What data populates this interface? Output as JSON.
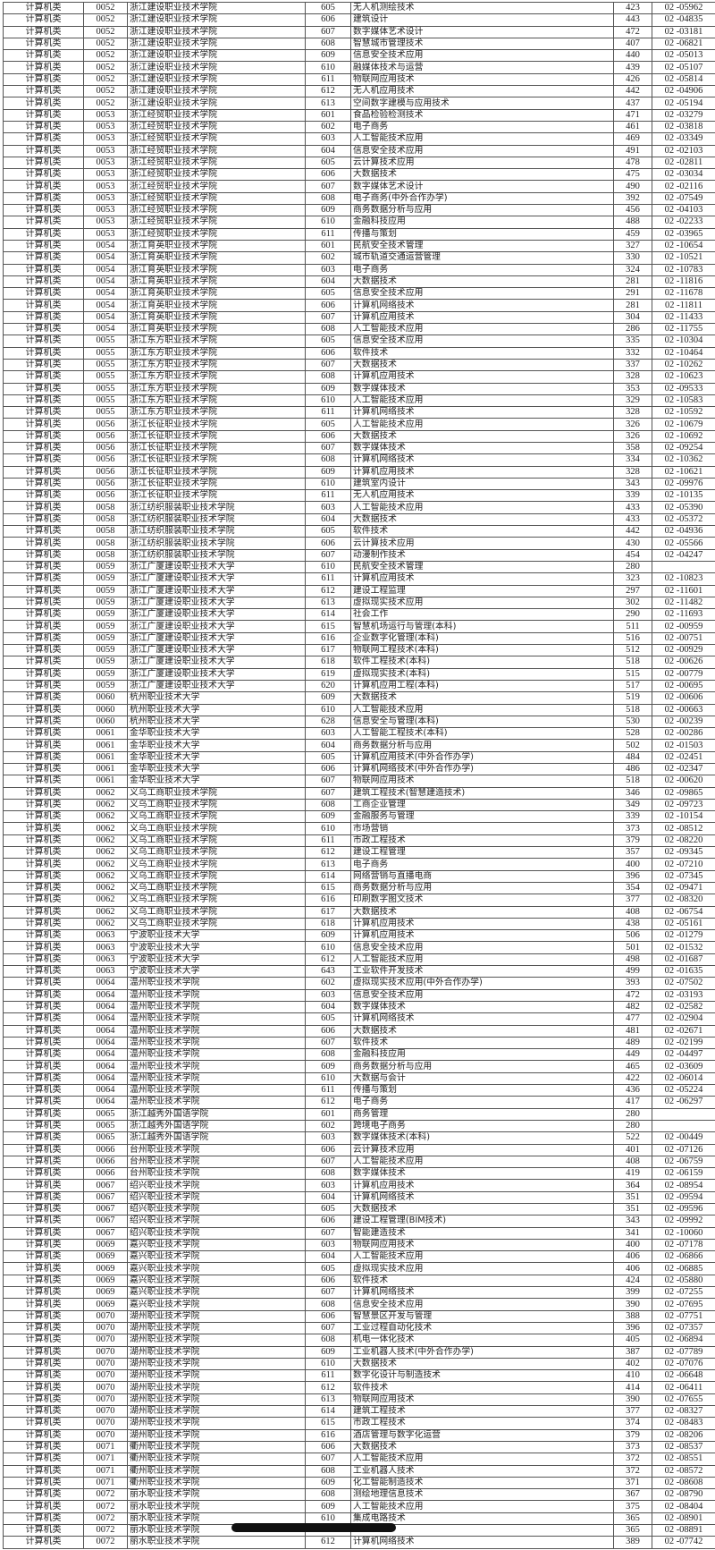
{
  "table": {
    "rows": [
      [
        "计算机类",
        "0052",
        "浙江建设职业技术学院",
        "605",
        "无人机测绘技术",
        "423",
        "02 -05962"
      ],
      [
        "计算机类",
        "0052",
        "浙江建设职业技术学院",
        "606",
        "建筑设计",
        "443",
        "02 -04835"
      ],
      [
        "计算机类",
        "0052",
        "浙江建设职业技术学院",
        "607",
        "数字媒体艺术设计",
        "472",
        "02 -03181"
      ],
      [
        "计算机类",
        "0052",
        "浙江建设职业技术学院",
        "608",
        "智慧城市管理技术",
        "407",
        "02 -06821"
      ],
      [
        "计算机类",
        "0052",
        "浙江建设职业技术学院",
        "609",
        "信息安全技术应用",
        "440",
        "02 -05013"
      ],
      [
        "计算机类",
        "0052",
        "浙江建设职业技术学院",
        "610",
        "融媒体技术与运营",
        "439",
        "02 -05107"
      ],
      [
        "计算机类",
        "0052",
        "浙江建设职业技术学院",
        "611",
        "物联网应用技术",
        "426",
        "02 -05814"
      ],
      [
        "计算机类",
        "0052",
        "浙江建设职业技术学院",
        "612",
        "无人机应用技术",
        "442",
        "02 -04906"
      ],
      [
        "计算机类",
        "0052",
        "浙江建设职业技术学院",
        "613",
        "空间数字建模与应用技术",
        "437",
        "02 -05194"
      ],
      [
        "计算机类",
        "0053",
        "浙江经贸职业技术学院",
        "601",
        "食品检验检测技术",
        "471",
        "02 -03279"
      ],
      [
        "计算机类",
        "0053",
        "浙江经贸职业技术学院",
        "602",
        "电子商务",
        "461",
        "02 -03818"
      ],
      [
        "计算机类",
        "0053",
        "浙江经贸职业技术学院",
        "603",
        "人工智能技术应用",
        "469",
        "02 -03349"
      ],
      [
        "计算机类",
        "0053",
        "浙江经贸职业技术学院",
        "604",
        "信息安全技术应用",
        "491",
        "02 -02103"
      ],
      [
        "计算机类",
        "0053",
        "浙江经贸职业技术学院",
        "605",
        "云计算技术应用",
        "478",
        "02 -02811"
      ],
      [
        "计算机类",
        "0053",
        "浙江经贸职业技术学院",
        "606",
        "大数据技术",
        "475",
        "02 -03034"
      ],
      [
        "计算机类",
        "0053",
        "浙江经贸职业技术学院",
        "607",
        "数字媒体艺术设计",
        "490",
        "02 -02116"
      ],
      [
        "计算机类",
        "0053",
        "浙江经贸职业技术学院",
        "608",
        "电子商务(中外合作办学)",
        "392",
        "02 -07549"
      ],
      [
        "计算机类",
        "0053",
        "浙江经贸职业技术学院",
        "609",
        "商务数据分析与应用",
        "456",
        "02 -04103"
      ],
      [
        "计算机类",
        "0053",
        "浙江经贸职业技术学院",
        "610",
        "金融科技应用",
        "488",
        "02 -02233"
      ],
      [
        "计算机类",
        "0053",
        "浙江经贸职业技术学院",
        "611",
        "传播与策划",
        "459",
        "02 -03965"
      ],
      [
        "计算机类",
        "0054",
        "浙江育英职业技术学院",
        "601",
        "民航安全技术管理",
        "327",
        "02 -10654"
      ],
      [
        "计算机类",
        "0054",
        "浙江育英职业技术学院",
        "602",
        "城市轨道交通运营管理",
        "330",
        "02 -10521"
      ],
      [
        "计算机类",
        "0054",
        "浙江育英职业技术学院",
        "603",
        "电子商务",
        "324",
        "02 -10783"
      ],
      [
        "计算机类",
        "0054",
        "浙江育英职业技术学院",
        "604",
        "大数据技术",
        "281",
        "02 -11816"
      ],
      [
        "计算机类",
        "0054",
        "浙江育英职业技术学院",
        "605",
        "信息安全技术应用",
        "291",
        "02 -11678"
      ],
      [
        "计算机类",
        "0054",
        "浙江育英职业技术学院",
        "606",
        "计算机网络技术",
        "281",
        "02 -11811"
      ],
      [
        "计算机类",
        "0054",
        "浙江育英职业技术学院",
        "607",
        "计算机应用技术",
        "304",
        "02 -11433"
      ],
      [
        "计算机类",
        "0054",
        "浙江育英职业技术学院",
        "608",
        "人工智能技术应用",
        "286",
        "02 -11755"
      ],
      [
        "计算机类",
        "0055",
        "浙江东方职业技术学院",
        "605",
        "信息安全技术应用",
        "335",
        "02 -10304"
      ],
      [
        "计算机类",
        "0055",
        "浙江东方职业技术学院",
        "606",
        "软件技术",
        "332",
        "02 -10464"
      ],
      [
        "计算机类",
        "0055",
        "浙江东方职业技术学院",
        "607",
        "大数据技术",
        "337",
        "02 -10262"
      ],
      [
        "计算机类",
        "0055",
        "浙江东方职业技术学院",
        "608",
        "计算机应用技术",
        "328",
        "02 -10623"
      ],
      [
        "计算机类",
        "0055",
        "浙江东方职业技术学院",
        "609",
        "数字媒体技术",
        "353",
        "02 -09533"
      ],
      [
        "计算机类",
        "0055",
        "浙江东方职业技术学院",
        "610",
        "人工智能技术应用",
        "329",
        "02 -10583"
      ],
      [
        "计算机类",
        "0055",
        "浙江东方职业技术学院",
        "611",
        "计算机网络技术",
        "328",
        "02 -10592"
      ],
      [
        "计算机类",
        "0056",
        "浙江长征职业技术学院",
        "605",
        "人工智能技术应用",
        "326",
        "02 -10679"
      ],
      [
        "计算机类",
        "0056",
        "浙江长征职业技术学院",
        "606",
        "大数据技术",
        "326",
        "02 -10692"
      ],
      [
        "计算机类",
        "0056",
        "浙江长征职业技术学院",
        "607",
        "数字媒体技术",
        "358",
        "02 -09254"
      ],
      [
        "计算机类",
        "0056",
        "浙江长征职业技术学院",
        "608",
        "计算机网络技术",
        "334",
        "02 -10362"
      ],
      [
        "计算机类",
        "0056",
        "浙江长征职业技术学院",
        "609",
        "计算机应用技术",
        "328",
        "02 -10621"
      ],
      [
        "计算机类",
        "0056",
        "浙江长征职业技术学院",
        "610",
        "建筑室内设计",
        "343",
        "02 -09976"
      ],
      [
        "计算机类",
        "0056",
        "浙江长征职业技术学院",
        "611",
        "无人机应用技术",
        "339",
        "02 -10135"
      ],
      [
        "计算机类",
        "0058",
        "浙江纺织服装职业技术学院",
        "603",
        "人工智能技术应用",
        "433",
        "02 -05390"
      ],
      [
        "计算机类",
        "0058",
        "浙江纺织服装职业技术学院",
        "604",
        "大数据技术",
        "433",
        "02 -05372"
      ],
      [
        "计算机类",
        "0058",
        "浙江纺织服装职业技术学院",
        "605",
        "软件技术",
        "442",
        "02 -04936"
      ],
      [
        "计算机类",
        "0058",
        "浙江纺织服装职业技术学院",
        "606",
        "云计算技术应用",
        "430",
        "02 -05566"
      ],
      [
        "计算机类",
        "0058",
        "浙江纺织服装职业技术学院",
        "607",
        "动漫制作技术",
        "454",
        "02 -04247"
      ],
      [
        "计算机类",
        "0059",
        "浙江广厦建设职业技术大学",
        "610",
        "民航安全技术管理",
        "280",
        ""
      ],
      [
        "计算机类",
        "0059",
        "浙江广厦建设职业技术大学",
        "611",
        "计算机应用技术",
        "323",
        "02 -10823"
      ],
      [
        "计算机类",
        "0059",
        "浙江广厦建设职业技术大学",
        "612",
        "建设工程监理",
        "297",
        "02 -11601"
      ],
      [
        "计算机类",
        "0059",
        "浙江广厦建设职业技术大学",
        "613",
        "虚拟现实技术应用",
        "302",
        "02 -11482"
      ],
      [
        "计算机类",
        "0059",
        "浙江广厦建设职业技术大学",
        "614",
        "社会工作",
        "290",
        "02 -11693"
      ],
      [
        "计算机类",
        "0059",
        "浙江广厦建设职业技术大学",
        "615",
        "智慧机场运行与管理(本科)",
        "511",
        "02 -00959"
      ],
      [
        "计算机类",
        "0059",
        "浙江广厦建设职业技术大学",
        "616",
        "企业数字化管理(本科)",
        "516",
        "02 -00751"
      ],
      [
        "计算机类",
        "0059",
        "浙江广厦建设职业技术大学",
        "617",
        "物联网工程技术(本科)",
        "512",
        "02 -00929"
      ],
      [
        "计算机类",
        "0059",
        "浙江广厦建设职业技术大学",
        "618",
        "软件工程技术(本科)",
        "518",
        "02 -00626"
      ],
      [
        "计算机类",
        "0059",
        "浙江广厦建设职业技术大学",
        "619",
        "虚拟现实技术(本科)",
        "515",
        "02 -00779"
      ],
      [
        "计算机类",
        "0059",
        "浙江广厦建设职业技术大学",
        "620",
        "计算机应用工程(本科)",
        "517",
        "02 -00695"
      ],
      [
        "计算机类",
        "0060",
        "杭州职业技术大学",
        "609",
        "大数据技术",
        "519",
        "02 -00606"
      ],
      [
        "计算机类",
        "0060",
        "杭州职业技术大学",
        "610",
        "人工智能技术应用",
        "518",
        "02 -00663"
      ],
      [
        "计算机类",
        "0060",
        "杭州职业技术大学",
        "628",
        "信息安全与管理(本科)",
        "530",
        "02 -00239"
      ],
      [
        "计算机类",
        "0061",
        "金华职业技术大学",
        "603",
        "人工智能工程技术(本科)",
        "528",
        "02 -00286"
      ],
      [
        "计算机类",
        "0061",
        "金华职业技术大学",
        "604",
        "商务数据分析与应用",
        "502",
        "02 -01503"
      ],
      [
        "计算机类",
        "0061",
        "金华职业技术大学",
        "605",
        "计算机应用技术(中外合作办学)",
        "484",
        "02 -02451"
      ],
      [
        "计算机类",
        "0061",
        "金华职业技术大学",
        "606",
        "计算机网络技术(中外合作办学)",
        "486",
        "02 -02347"
      ],
      [
        "计算机类",
        "0061",
        "金华职业技术大学",
        "607",
        "物联网应用技术",
        "518",
        "02 -00620"
      ],
      [
        "计算机类",
        "0062",
        "义乌工商职业技术学院",
        "607",
        "建筑工程技术(智慧建造技术)",
        "346",
        "02 -09865"
      ],
      [
        "计算机类",
        "0062",
        "义乌工商职业技术学院",
        "608",
        "工商企业管理",
        "349",
        "02 -09723"
      ],
      [
        "计算机类",
        "0062",
        "义乌工商职业技术学院",
        "609",
        "金融服务与管理",
        "339",
        "02 -10154"
      ],
      [
        "计算机类",
        "0062",
        "义乌工商职业技术学院",
        "610",
        "市场营销",
        "373",
        "02 -08512"
      ],
      [
        "计算机类",
        "0062",
        "义乌工商职业技术学院",
        "611",
        "市政工程技术",
        "379",
        "02 -08220"
      ],
      [
        "计算机类",
        "0062",
        "义乌工商职业技术学院",
        "612",
        "建设工程管理",
        "357",
        "02 -09345"
      ],
      [
        "计算机类",
        "0062",
        "义乌工商职业技术学院",
        "613",
        "电子商务",
        "400",
        "02 -07210"
      ],
      [
        "计算机类",
        "0062",
        "义乌工商职业技术学院",
        "614",
        "网络营销与直播电商",
        "396",
        "02 -07345"
      ],
      [
        "计算机类",
        "0062",
        "义乌工商职业技术学院",
        "615",
        "商务数据分析与应用",
        "354",
        "02 -09471"
      ],
      [
        "计算机类",
        "0062",
        "义乌工商职业技术学院",
        "616",
        "印刷数字图文技术",
        "377",
        "02 -08320"
      ],
      [
        "计算机类",
        "0062",
        "义乌工商职业技术学院",
        "617",
        "大数据技术",
        "408",
        "02 -06754"
      ],
      [
        "计算机类",
        "0062",
        "义乌工商职业技术学院",
        "618",
        "计算机应用技术",
        "438",
        "02 -05161"
      ],
      [
        "计算机类",
        "0063",
        "宁波职业技术大学",
        "609",
        "计算机应用技术",
        "506",
        "02 -01279"
      ],
      [
        "计算机类",
        "0063",
        "宁波职业技术大学",
        "610",
        "信息安全技术应用",
        "501",
        "02 -01532"
      ],
      [
        "计算机类",
        "0063",
        "宁波职业技术大学",
        "612",
        "人工智能技术应用",
        "498",
        "02 -01687"
      ],
      [
        "计算机类",
        "0063",
        "宁波职业技术大学",
        "643",
        "工业软件开发技术",
        "499",
        "02 -01635"
      ],
      [
        "计算机类",
        "0064",
        "温州职业技术学院",
        "602",
        "虚拟现实技术应用(中外合作办学)",
        "393",
        "02 -07502"
      ],
      [
        "计算机类",
        "0064",
        "温州职业技术学院",
        "603",
        "信息安全技术应用",
        "472",
        "02 -03193"
      ],
      [
        "计算机类",
        "0064",
        "温州职业技术学院",
        "604",
        "数字媒体技术",
        "482",
        "02 -02582"
      ],
      [
        "计算机类",
        "0064",
        "温州职业技术学院",
        "605",
        "计算机网络技术",
        "477",
        "02 -02904"
      ],
      [
        "计算机类",
        "0064",
        "温州职业技术学院",
        "606",
        "大数据技术",
        "481",
        "02 -02671"
      ],
      [
        "计算机类",
        "0064",
        "温州职业技术学院",
        "607",
        "软件技术",
        "489",
        "02 -02199"
      ],
      [
        "计算机类",
        "0064",
        "温州职业技术学院",
        "608",
        "金融科技应用",
        "449",
        "02 -04497"
      ],
      [
        "计算机类",
        "0064",
        "温州职业技术学院",
        "609",
        "商务数据分析与应用",
        "465",
        "02 -03609"
      ],
      [
        "计算机类",
        "0064",
        "温州职业技术学院",
        "610",
        "大数据与会计",
        "422",
        "02 -06014"
      ],
      [
        "计算机类",
        "0064",
        "温州职业技术学院",
        "611",
        "传播与策划",
        "436",
        "02 -05224"
      ],
      [
        "计算机类",
        "0064",
        "温州职业技术学院",
        "612",
        "电子商务",
        "417",
        "02 -06297"
      ],
      [
        "计算机类",
        "0065",
        "浙江越秀外国语学院",
        "601",
        "商务管理",
        "280",
        ""
      ],
      [
        "计算机类",
        "0065",
        "浙江越秀外国语学院",
        "602",
        "跨境电子商务",
        "280",
        ""
      ],
      [
        "计算机类",
        "0065",
        "浙江越秀外国语学院",
        "603",
        "数字媒体技术(本科)",
        "522",
        "02 -00449"
      ],
      [
        "计算机类",
        "0066",
        "台州职业技术学院",
        "606",
        "云计算技术应用",
        "401",
        "02 -07126"
      ],
      [
        "计算机类",
        "0066",
        "台州职业技术学院",
        "607",
        "人工智能技术应用",
        "408",
        "02 -06759"
      ],
      [
        "计算机类",
        "0066",
        "台州职业技术学院",
        "608",
        "数字媒体技术",
        "419",
        "02 -06159"
      ],
      [
        "计算机类",
        "0067",
        "绍兴职业技术学院",
        "603",
        "计算机应用技术",
        "364",
        "02 -08954"
      ],
      [
        "计算机类",
        "0067",
        "绍兴职业技术学院",
        "604",
        "计算机网络技术",
        "351",
        "02 -09594"
      ],
      [
        "计算机类",
        "0067",
        "绍兴职业技术学院",
        "605",
        "大数据技术",
        "351",
        "02 -09596"
      ],
      [
        "计算机类",
        "0067",
        "绍兴职业技术学院",
        "606",
        "建设工程管理(BIM技术)",
        "343",
        "02 -09992"
      ],
      [
        "计算机类",
        "0067",
        "绍兴职业技术学院",
        "607",
        "智能建造技术",
        "341",
        "02 -10060"
      ],
      [
        "计算机类",
        "0069",
        "嘉兴职业技术学院",
        "603",
        "物联网应用技术",
        "400",
        "02 -07178"
      ],
      [
        "计算机类",
        "0069",
        "嘉兴职业技术学院",
        "604",
        "人工智能技术应用",
        "406",
        "02 -06866"
      ],
      [
        "计算机类",
        "0069",
        "嘉兴职业技术学院",
        "605",
        "虚拟现实技术应用",
        "406",
        "02 -06885"
      ],
      [
        "计算机类",
        "0069",
        "嘉兴职业技术学院",
        "606",
        "软件技术",
        "424",
        "02 -05880"
      ],
      [
        "计算机类",
        "0069",
        "嘉兴职业技术学院",
        "607",
        "计算机网络技术",
        "399",
        "02 -07255"
      ],
      [
        "计算机类",
        "0069",
        "嘉兴职业技术学院",
        "608",
        "信息安全技术应用",
        "390",
        "02 -07695"
      ],
      [
        "计算机类",
        "0070",
        "湖州职业技术学院",
        "606",
        "智慧景区开发与管理",
        "388",
        "02 -07751"
      ],
      [
        "计算机类",
        "0070",
        "湖州职业技术学院",
        "607",
        "工业过程自动化技术",
        "396",
        "02 -07357"
      ],
      [
        "计算机类",
        "0070",
        "湖州职业技术学院",
        "608",
        "机电一体化技术",
        "405",
        "02 -06894"
      ],
      [
        "计算机类",
        "0070",
        "湖州职业技术学院",
        "609",
        "工业机器人技术(中外合作办学)",
        "387",
        "02 -07789"
      ],
      [
        "计算机类",
        "0070",
        "湖州职业技术学院",
        "610",
        "大数据技术",
        "402",
        "02 -07076"
      ],
      [
        "计算机类",
        "0070",
        "湖州职业技术学院",
        "611",
        "数字化设计与制造技术",
        "410",
        "02 -06648"
      ],
      [
        "计算机类",
        "0070",
        "湖州职业技术学院",
        "612",
        "软件技术",
        "414",
        "02 -06411"
      ],
      [
        "计算机类",
        "0070",
        "湖州职业技术学院",
        "613",
        "物联网应用技术",
        "390",
        "02 -07655"
      ],
      [
        "计算机类",
        "0070",
        "湖州职业技术学院",
        "614",
        "建筑工程技术",
        "377",
        "02 -08327"
      ],
      [
        "计算机类",
        "0070",
        "湖州职业技术学院",
        "615",
        "市政工程技术",
        "374",
        "02 -08483"
      ],
      [
        "计算机类",
        "0070",
        "湖州职业技术学院",
        "616",
        "酒店管理与数字化运营",
        "379",
        "02 -08206"
      ],
      [
        "计算机类",
        "0071",
        "衢州职业技术学院",
        "606",
        "大数据技术",
        "373",
        "02 -08537"
      ],
      [
        "计算机类",
        "0071",
        "衢州职业技术学院",
        "607",
        "人工智能技术应用",
        "372",
        "02 -08551"
      ],
      [
        "计算机类",
        "0071",
        "衢州职业技术学院",
        "608",
        "工业机器人技术",
        "372",
        "02 -08572"
      ],
      [
        "计算机类",
        "0071",
        "衢州职业技术学院",
        "609",
        "化工智能制造技术",
        "371",
        "02 -08608"
      ],
      [
        "计算机类",
        "0072",
        "丽水职业技术学院",
        "608",
        "测绘地理信息技术",
        "367",
        "02 -08790"
      ],
      [
        "计算机类",
        "0072",
        "丽水职业技术学院",
        "609",
        "人工智能技术应用",
        "375",
        "02 -08404"
      ],
      [
        "计算机类",
        "0072",
        "丽水职业技术学院",
        "610",
        "集成电路技术",
        "365",
        "02 -08901"
      ],
      [
        "计算机类",
        "0072",
        "丽水职业技术学院",
        "",
        "",
        "365",
        "02 -08891"
      ],
      [
        "计算机类",
        "0072",
        "丽水职业技术学院",
        "612",
        "计算机网络技术",
        "389",
        "02 -07742"
      ]
    ]
  }
}
